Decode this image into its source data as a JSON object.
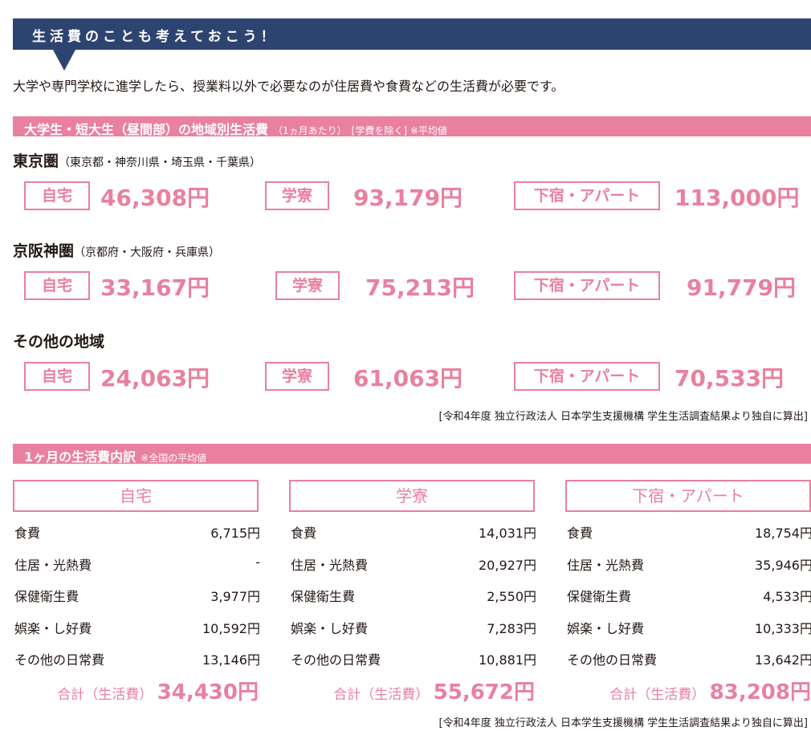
{
  "banner": "生活費のことも考えておこう！",
  "intro": "大学や専門学校に進学したら、授業料以外で必要なのが住居費や食費などの生活費が必要です。",
  "section1": {
    "title": "大学生・短大生（昼間部）の地域別生活費",
    "sub": "（1ヵ月あたり）　[学費を除く] ※平均値"
  },
  "regions": [
    {
      "name": "東京圏",
      "sub": "（東京都・神奈川県・埼玉県・千葉県）",
      "home": "46,308円",
      "dorm": "93,179円",
      "apart": "113,000円"
    },
    {
      "name": "京阪神圏",
      "sub": "（京都府・大阪府・兵庫県）",
      "home": "33,167円",
      "dorm": "75,213円",
      "apart": "91,779円"
    },
    {
      "name": "その他の地域",
      "sub": "",
      "home": "24,063円",
      "dorm": "61,063円",
      "apart": "70,533円"
    }
  ],
  "labels": {
    "home": "自宅",
    "dorm": "学寮",
    "apart": "下宿・アパート"
  },
  "source": "[令和4年度 独立行政法人 日本学生支援機構 学生生活調査結果より独自に算出]",
  "section2": {
    "title": "1ヶ月の生活費内訳",
    "sub": "※全国の平均値"
  },
  "items": [
    "食費",
    "住居・光熱費",
    "保健衛生費",
    "娯楽・し好費",
    "その他の日常費"
  ],
  "total_label": "合計（生活費）",
  "breakdown": [
    {
      "values": [
        "6,715円",
        "-",
        "3,977円",
        "10,592円",
        "13,146円"
      ],
      "total": "34,430円"
    },
    {
      "values": [
        "14,031円",
        "20,927円",
        "2,550円",
        "7,283円",
        "10,881円"
      ],
      "total": "55,672円"
    },
    {
      "values": [
        "18,754円",
        "35,946円",
        "4,533円",
        "10,333円",
        "13,642円"
      ],
      "total": "83,208円"
    }
  ],
  "colors": {
    "navy": "#2e4470",
    "pink": "#e9809f"
  }
}
